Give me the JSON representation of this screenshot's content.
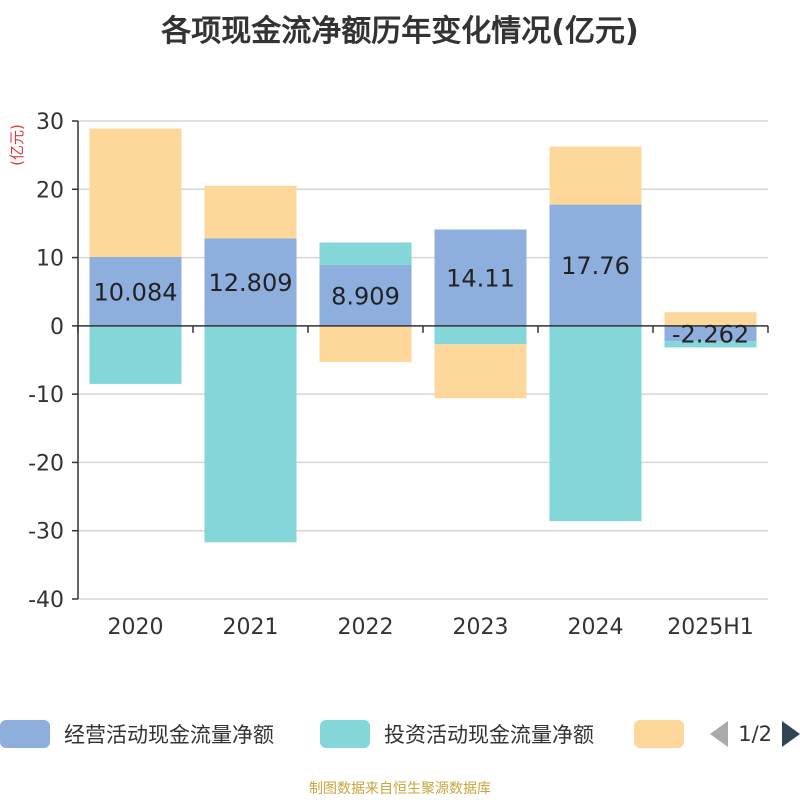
{
  "title": "各项现金流净额历年变化情况(亿元)",
  "source": "制图数据来自恒生聚源数据库",
  "pager": {
    "text": "1/2"
  },
  "colors": {
    "operating": "#8eaedd",
    "investing": "#85d6d8",
    "financing": "#fdd89a",
    "axis": "#333333",
    "grid": "#d6d6d6",
    "unit": "#e03a3a"
  },
  "chart_data": {
    "type": "bar",
    "stacked": true,
    "categories": [
      "2020",
      "2021",
      "2022",
      "2023",
      "2024",
      "2025H1"
    ],
    "ylabel": "(亿元)",
    "ylim": [
      -40,
      30
    ],
    "yticks": [
      30,
      20,
      10,
      0,
      -10,
      -20,
      -30,
      -40
    ],
    "grid": true,
    "legend_position": "bottom",
    "series": [
      {
        "name": "经营活动现金流量净额",
        "color_key": "operating",
        "values": [
          10.084,
          12.809,
          8.909,
          14.11,
          17.76,
          -2.262
        ],
        "labels": [
          "10.084",
          "12.809",
          "8.909",
          "14.11",
          "17.76",
          "-2.262"
        ]
      },
      {
        "name": "投资活动现金流量净额",
        "color_key": "investing",
        "values": [
          -8.5,
          -31.7,
          3.3,
          -2.7,
          -28.6,
          -0.9
        ]
      },
      {
        "name": "",
        "color_key": "financing",
        "values": [
          18.8,
          7.7,
          -5.3,
          -7.9,
          8.5,
          2.0
        ]
      }
    ]
  }
}
